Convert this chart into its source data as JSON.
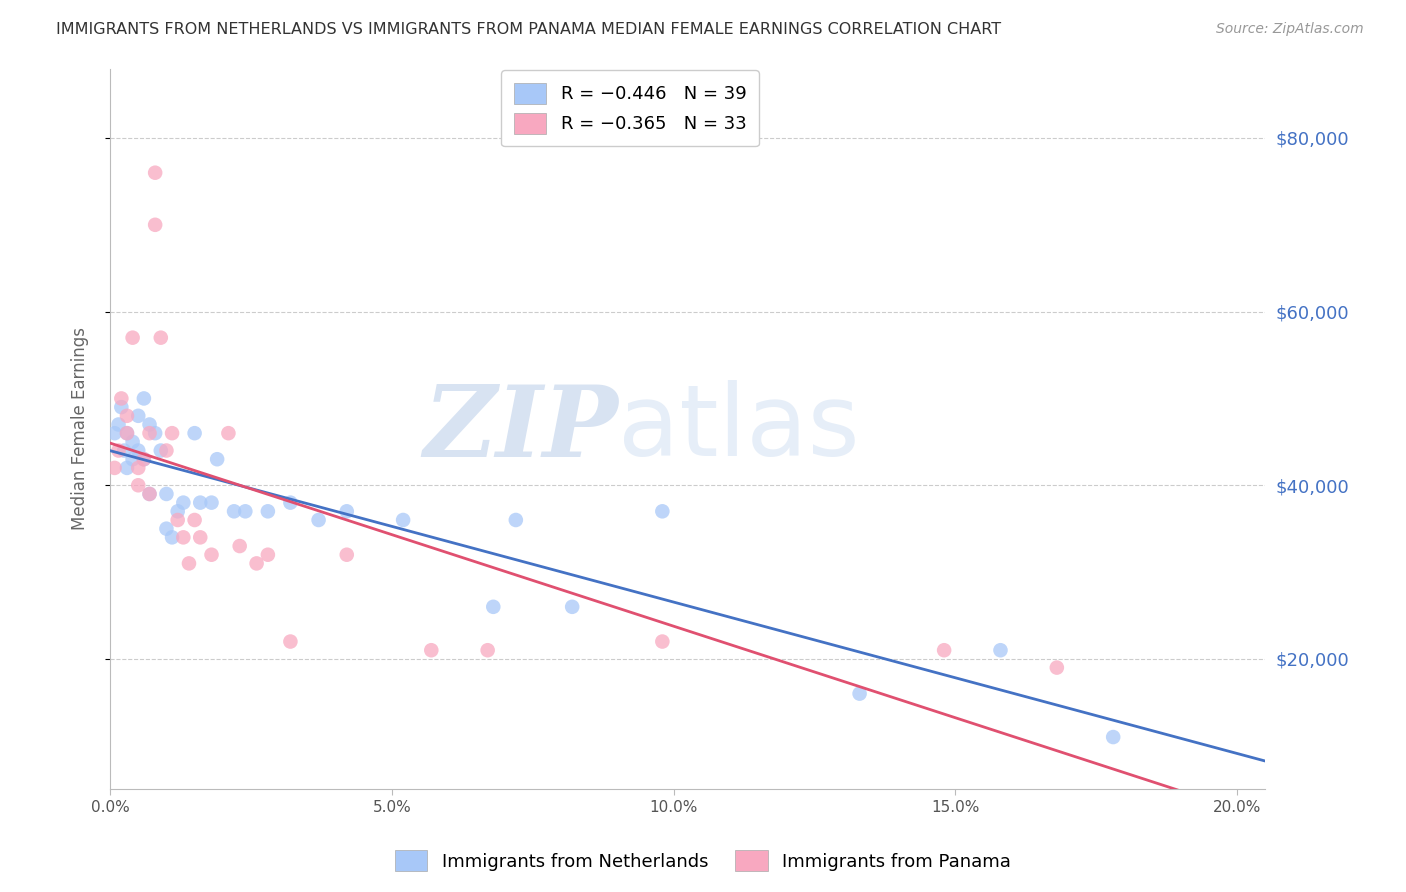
{
  "title": "IMMIGRANTS FROM NETHERLANDS VS IMMIGRANTS FROM PANAMA MEDIAN FEMALE EARNINGS CORRELATION CHART",
  "source": "Source: ZipAtlas.com",
  "ylabel": "Median Female Earnings",
  "xlabel_ticks": [
    "0.0%",
    "5.0%",
    "10.0%",
    "15.0%",
    "20.0%"
  ],
  "xlabel_vals": [
    0.0,
    0.05,
    0.1,
    0.15,
    0.2
  ],
  "ylabel_ticks": [
    20000,
    40000,
    60000,
    80000
  ],
  "xlim": [
    0.0,
    0.205
  ],
  "ylim": [
    5000,
    88000
  ],
  "legend_labels": [
    "Immigrants from Netherlands",
    "Immigrants from Panama"
  ],
  "netherlands_color": "#a8c8f8",
  "panama_color": "#f8a8c0",
  "netherlands_line_color": "#4472c4",
  "panama_line_color": "#e05070",
  "scatter_alpha": 0.75,
  "scatter_size": 110,
  "netherlands_x": [
    0.0008,
    0.0015,
    0.002,
    0.0025,
    0.003,
    0.003,
    0.004,
    0.004,
    0.005,
    0.005,
    0.006,
    0.006,
    0.007,
    0.007,
    0.008,
    0.009,
    0.01,
    0.01,
    0.011,
    0.012,
    0.013,
    0.015,
    0.016,
    0.018,
    0.019,
    0.022,
    0.024,
    0.028,
    0.032,
    0.037,
    0.042,
    0.052,
    0.068,
    0.072,
    0.082,
    0.098,
    0.133,
    0.158,
    0.178
  ],
  "netherlands_y": [
    46000,
    47000,
    49000,
    44000,
    46000,
    42000,
    45000,
    43000,
    48000,
    44000,
    50000,
    43000,
    47000,
    39000,
    46000,
    44000,
    39000,
    35000,
    34000,
    37000,
    38000,
    46000,
    38000,
    38000,
    43000,
    37000,
    37000,
    37000,
    38000,
    36000,
    37000,
    36000,
    26000,
    36000,
    26000,
    37000,
    16000,
    21000,
    11000
  ],
  "panama_x": [
    0.0008,
    0.0015,
    0.002,
    0.003,
    0.003,
    0.004,
    0.005,
    0.005,
    0.006,
    0.007,
    0.007,
    0.008,
    0.008,
    0.009,
    0.01,
    0.011,
    0.012,
    0.013,
    0.014,
    0.015,
    0.016,
    0.018,
    0.021,
    0.023,
    0.026,
    0.028,
    0.032,
    0.042,
    0.057,
    0.067,
    0.098,
    0.148,
    0.168
  ],
  "panama_y": [
    42000,
    44000,
    50000,
    48000,
    46000,
    57000,
    42000,
    40000,
    43000,
    46000,
    39000,
    70000,
    76000,
    57000,
    44000,
    46000,
    36000,
    34000,
    31000,
    36000,
    34000,
    32000,
    46000,
    33000,
    31000,
    32000,
    22000,
    32000,
    21000,
    21000,
    22000,
    21000,
    19000
  ],
  "background_color": "#ffffff",
  "grid_color": "#cccccc",
  "right_axis_color": "#4472c4",
  "watermark_zip": "ZIP",
  "watermark_atlas": "atlas",
  "watermark_color": "#d0e4f8",
  "r_nl": "-0.446",
  "n_nl": "39",
  "r_pa": "-0.365",
  "n_pa": "33"
}
